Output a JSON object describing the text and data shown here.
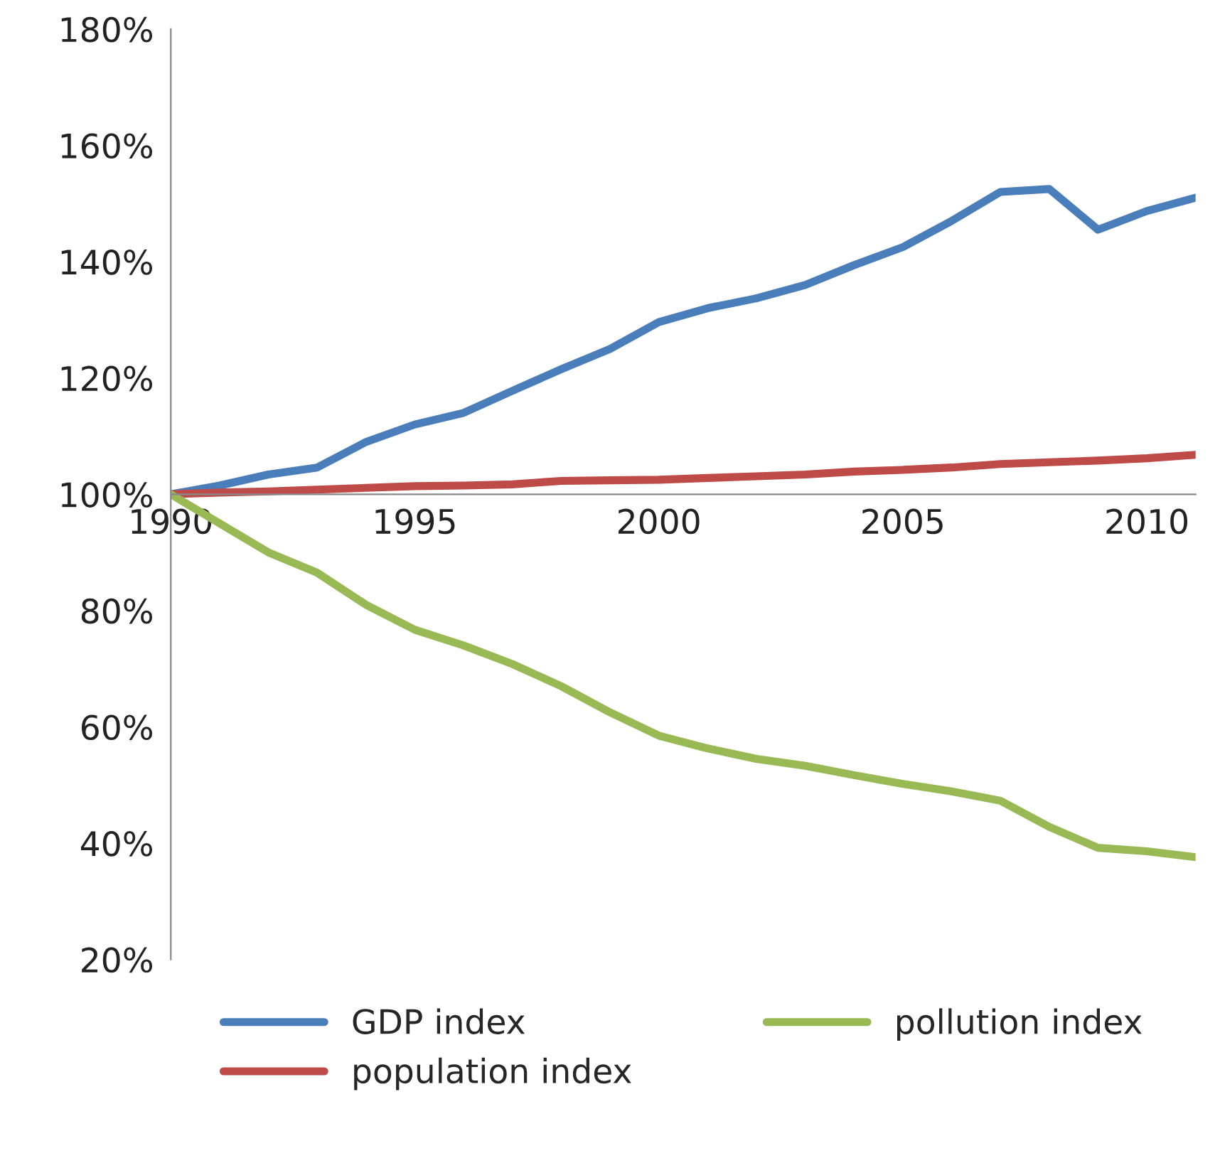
{
  "chart_data": {
    "type": "line",
    "x": [
      1990,
      1991,
      1992,
      1993,
      1994,
      1995,
      1996,
      1997,
      1998,
      1999,
      2000,
      2001,
      2002,
      2003,
      2004,
      2005,
      2006,
      2007,
      2008,
      2009,
      2010,
      2011
    ],
    "series": [
      {
        "name": "GDP index",
        "color": "#4a7ebb",
        "values": [
          100,
          101.5,
          103.4,
          104.6,
          109,
          112,
          114,
          117.8,
          121.5,
          125,
          129.6,
          132,
          133.7,
          136,
          139.4,
          142.5,
          147,
          152,
          152.5,
          145.5,
          148.7,
          151
        ]
      },
      {
        "name": "population index",
        "color": "#be4b48",
        "values": [
          100,
          100.3,
          100.5,
          100.8,
          101.1,
          101.4,
          101.5,
          101.7,
          102.3,
          102.4,
          102.5,
          102.8,
          103.1,
          103.4,
          103.9,
          104.2,
          104.6,
          105.2,
          105.5,
          105.8,
          106.2,
          106.8
        ]
      },
      {
        "name": "pollution index",
        "color": "#98b954",
        "values": [
          100,
          95,
          90,
          86.5,
          81,
          76.7,
          74,
          70.8,
          67,
          62.5,
          58.5,
          56.3,
          54.5,
          53.3,
          51.7,
          50.2,
          48.9,
          47.3,
          42.8,
          39.2,
          38.6,
          37.6
        ]
      }
    ],
    "xlim": [
      1990,
      2011
    ],
    "xticks": [
      1990,
      1995,
      2000,
      2005,
      2010
    ],
    "ylim": [
      20,
      180
    ],
    "yticks": [
      {
        "value": 20,
        "label": "20%"
      },
      {
        "value": 40,
        "label": "40%"
      },
      {
        "value": 60,
        "label": "60%"
      },
      {
        "value": 80,
        "label": "80%"
      },
      {
        "value": 100,
        "label": "100%"
      },
      {
        "value": 120,
        "label": "120%"
      },
      {
        "value": 140,
        "label": "140%"
      },
      {
        "value": 160,
        "label": "160%"
      },
      {
        "value": 180,
        "label": "180%"
      }
    ],
    "grid": false,
    "legend": "bottom",
    "marker": "none",
    "line_style": "solid"
  }
}
